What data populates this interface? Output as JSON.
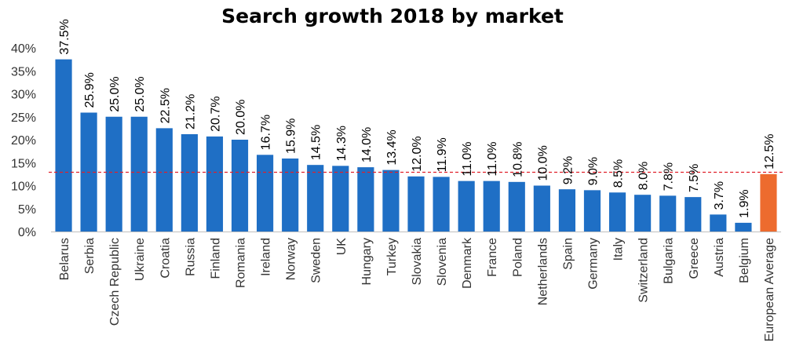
{
  "chart_data": {
    "type": "bar",
    "title": "Search growth 2018 by market",
    "xlabel": "",
    "ylabel": "",
    "ylim": [
      0,
      40
    ],
    "yticks": [
      "0%",
      "5%",
      "10%",
      "15%",
      "20%",
      "25%",
      "30%",
      "35%",
      "40%"
    ],
    "ytick_values": [
      0,
      5,
      10,
      15,
      20,
      25,
      30,
      35,
      40
    ],
    "categories": [
      "Belarus",
      "Serbia",
      "Czech Republic",
      "Ukraine",
      "Croatia",
      "Russia",
      "Finland",
      "Romania",
      "Ireland",
      "Norway",
      "Sweden",
      "UK",
      "Hungary",
      "Turkey",
      "Slovakia",
      "Slovenia",
      "Denmark",
      "France",
      "Poland",
      "Netherlands",
      "Spain",
      "Germany",
      "Italy",
      "Switzerland",
      "Bulgaria",
      "Greece",
      "Austria",
      "Belgium",
      "European Average"
    ],
    "values": [
      37.5,
      25.9,
      25.0,
      25.0,
      22.5,
      21.2,
      20.7,
      20.0,
      16.7,
      15.9,
      14.5,
      14.3,
      14.0,
      13.4,
      12.0,
      11.9,
      11.0,
      11.0,
      10.8,
      10.0,
      9.2,
      9.0,
      8.5,
      8.0,
      7.8,
      7.5,
      3.7,
      1.9,
      12.5
    ],
    "data_labels": [
      "37.5%",
      "25.9%",
      "25.0%",
      "25.0%",
      "22.5%",
      "21.2%",
      "20.7%",
      "20.0%",
      "16.7%",
      "15.9%",
      "14.5%",
      "14.3%",
      "14.0%",
      "13.4%",
      "12.0%",
      "11.9%",
      "11.0%",
      "11.0%",
      "10.8%",
      "10.0%",
      "9.2%",
      "9.0%",
      "8.5%",
      "8.0%",
      "7.8%",
      "7.5%",
      "3.7%",
      "1.9%",
      "12.5%"
    ],
    "reference_line": 12.9,
    "colors": {
      "bar": "#1f6fc5",
      "highlight_bar": "#ed6b2e",
      "reference_line": "#e0202a"
    },
    "highlight_index": 28,
    "grid": false,
    "legend": "none"
  }
}
